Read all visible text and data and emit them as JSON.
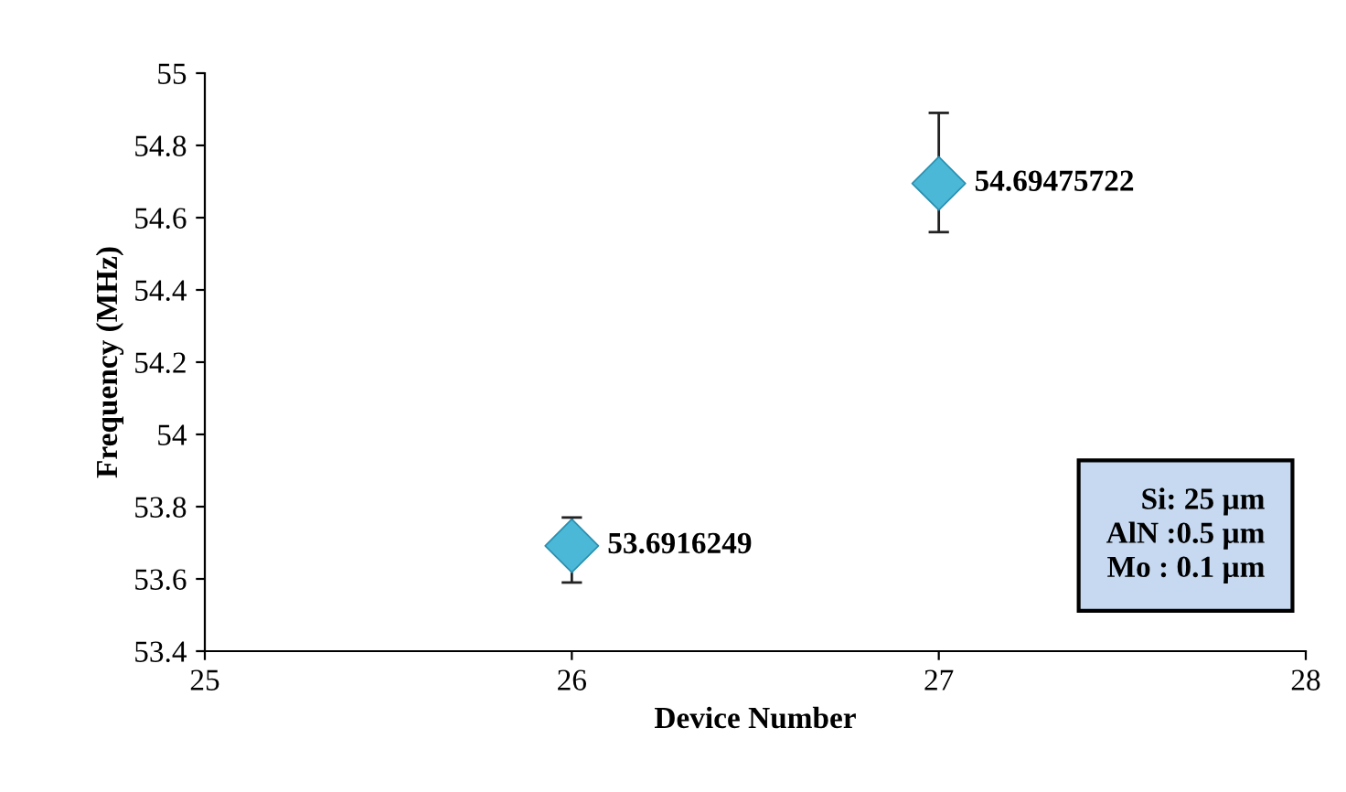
{
  "chart_data": {
    "type": "scatter",
    "xlabel": "Device Number",
    "ylabel": "Frequency (MHz)",
    "x": [
      26,
      27
    ],
    "values": [
      53.6916249,
      54.69475722
    ],
    "color": "#4ab8d6",
    "errors": [
      [
        53.59,
        53.77
      ],
      [
        54.56,
        54.89
      ]
    ],
    "data_labels": true,
    "marker": "diamond",
    "xlim": [
      25,
      28
    ],
    "xticks": [
      25,
      26,
      27,
      28
    ],
    "ylim": [
      53.4,
      55
    ],
    "yticks": [
      53.4,
      53.6,
      53.8,
      54,
      54.2,
      54.4,
      54.6,
      54.8,
      55
    ],
    "grid": false,
    "legend": false,
    "annotations": [
      "Si: 25 µm\nAlN :0.5 µm\nMo : 0.1 µm"
    ]
  }
}
